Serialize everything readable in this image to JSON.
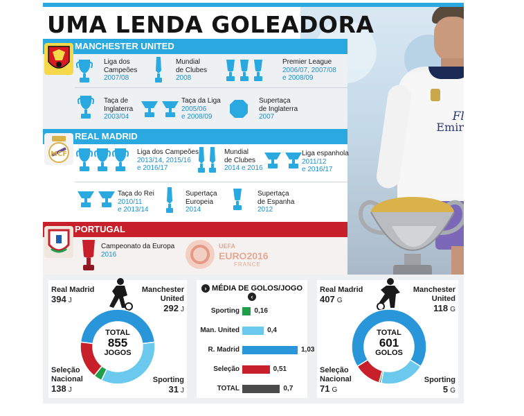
{
  "headline": "UMA LENDA GOLEADORA",
  "colors": {
    "accent_blue": "#2aa9e0",
    "united_red": "#d71920",
    "portugal_red": "#c8202b",
    "sporting_green": "#1f9d48",
    "total_grey": "#4a4a4a",
    "madrid_blue": "#2896d8",
    "united_light": "#6cc9ee"
  },
  "manchester_united": {
    "header": "MANCHESTER UNITED",
    "trophies": [
      {
        "line1": "Liga dos",
        "line2": "Campeões",
        "years1": "2007/08",
        "years2": ""
      },
      {
        "line1": "Mundial",
        "line2": "de Clubes",
        "years1": "2008",
        "years2": ""
      },
      {
        "line1": "Premier League",
        "line2": "",
        "years1": "2006/07, 2007/08",
        "years2": "e 2008/09"
      },
      {
        "line1": "Taça de",
        "line2": "Inglaterra",
        "years1": "2003/04",
        "years2": ""
      },
      {
        "line1": "Taça da Liga",
        "line2": "",
        "years1": "2005/06",
        "years2": "e 2008/09"
      },
      {
        "line1": "Supertaça",
        "line2": "de Inglaterra",
        "years1": "2007",
        "years2": ""
      }
    ]
  },
  "real_madrid": {
    "header": "REAL MADRID",
    "trophies": [
      {
        "line1": "Liga dos Campeões",
        "line2": "",
        "years1": "2013/14, 2015/16",
        "years2": "e 2016/17"
      },
      {
        "line1": "Mundial",
        "line2": "de Clubes",
        "years1": "2014 e 2016",
        "years2": ""
      },
      {
        "line1": "Liga espanhola",
        "line2": "",
        "years1": "2011/12",
        "years2": "e 2016/17"
      },
      {
        "line1": "Taça do Rei",
        "line2": "",
        "years1": "2010/11",
        "years2": "e 2013/14"
      },
      {
        "line1": "Supertaça",
        "line2": "Europeia",
        "years1": "2014",
        "years2": ""
      },
      {
        "line1": "Supertaça",
        "line2": "de Espanha",
        "years1": "2012",
        "years2": ""
      }
    ]
  },
  "portugal": {
    "header": "PORTUGAL",
    "trophies": [
      {
        "line1": "Campeonato da Europa",
        "line2": "",
        "years1": "2016",
        "years2": ""
      }
    ],
    "euro_logo_text": "EURO2016",
    "euro_logo_sub": "FRANCE",
    "uefa_text": "UEFA"
  },
  "shirt": {
    "sponsor1": "Fly",
    "sponsor2": "Emirates"
  },
  "games": {
    "total_label": "TOTAL",
    "total_value": "855",
    "total_unit": "JOGOS",
    "segments": [
      {
        "team1": "Real Madrid",
        "team2": "",
        "value": "394",
        "unit": "J",
        "share": 394
      },
      {
        "team1": "Manchester",
        "team2": "United",
        "value": "292",
        "unit": "J",
        "share": 292
      },
      {
        "team1": "Sporting",
        "team2": "",
        "value": "31",
        "unit": "J",
        "share": 31
      },
      {
        "team1": "Seleção",
        "team2": "Nacional",
        "value": "138",
        "unit": "J",
        "share": 138
      }
    ]
  },
  "average": {
    "title": "MÉDIA DE GOLOS/JOGO",
    "max": 1.03,
    "rows": [
      {
        "label": "Sporting",
        "value": 0.16,
        "text": "0,16",
        "color": "#1f9d48"
      },
      {
        "label": "Man. United",
        "value": 0.4,
        "text": "0,4",
        "color": "#6cc9ee"
      },
      {
        "label": "R. Madrid",
        "value": 1.03,
        "text": "1,03",
        "color": "#2896d8"
      },
      {
        "label": "Seleção",
        "value": 0.51,
        "text": "0,51",
        "color": "#c8202b"
      },
      {
        "label": "TOTAL",
        "value": 0.7,
        "text": "0,7",
        "color": "#4a4a4a"
      }
    ]
  },
  "goals": {
    "total_label": "TOTAL",
    "total_value": "601",
    "total_unit": "GOLOS",
    "segments": [
      {
        "team1": "Real Madrid",
        "team2": "",
        "value": "407",
        "unit": "G",
        "share": 407
      },
      {
        "team1": "Manchester",
        "team2": "United",
        "value": "118",
        "unit": "G",
        "share": 118
      },
      {
        "team1": "Sporting",
        "team2": "",
        "value": "5",
        "unit": "G",
        "share": 5
      },
      {
        "team1": "Seleção",
        "team2": "Nacional",
        "value": "71",
        "unit": "G",
        "share": 71
      }
    ]
  }
}
